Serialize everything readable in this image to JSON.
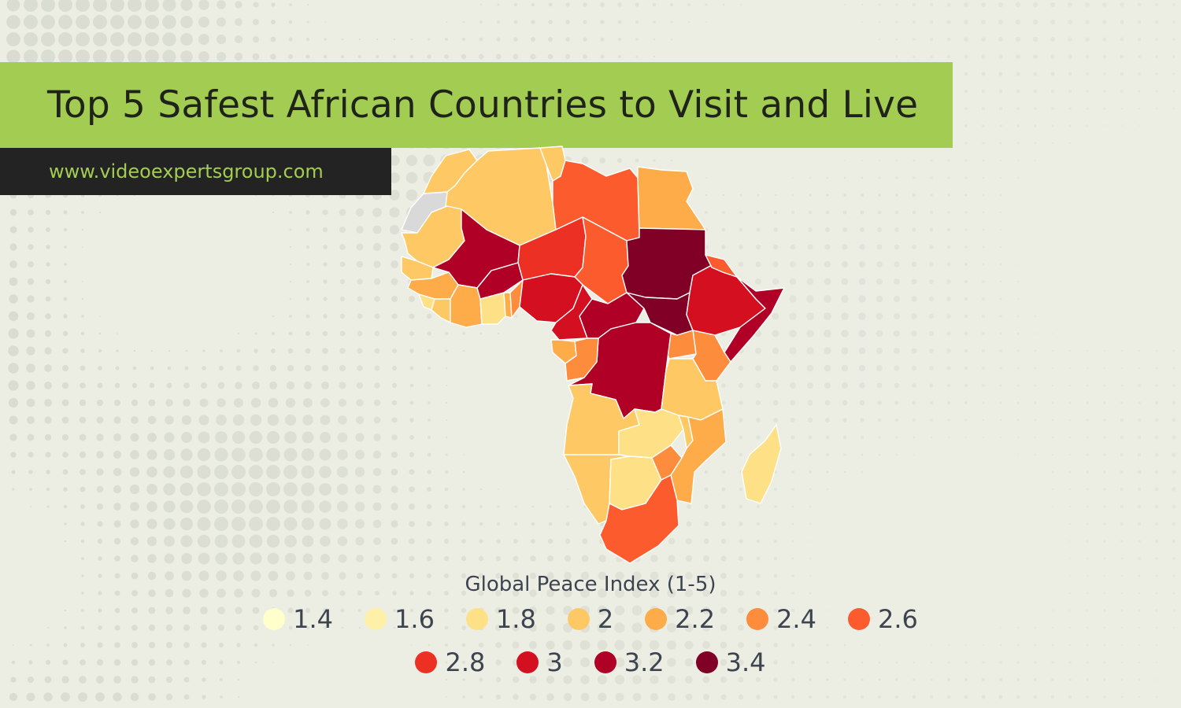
{
  "header": {
    "title": "Top 5 Safest African Countries to Visit and Live",
    "url": "www.videoexpertsgroup.com"
  },
  "colors": {
    "background": "#eceee4",
    "title_bar": "#a2cd52",
    "url_bar": "#232323",
    "url_text": "#a2cd52",
    "no_data": "#d9d9d9"
  },
  "legend": {
    "title": "Global Peace Index (1-5)",
    "items": [
      {
        "label": "1.4",
        "color": "#ffffcc"
      },
      {
        "label": "1.6",
        "color": "#fff0a8"
      },
      {
        "label": "1.8",
        "color": "#fee087"
      },
      {
        "label": "2",
        "color": "#fec965"
      },
      {
        "label": "2.2",
        "color": "#feab49"
      },
      {
        "label": "2.4",
        "color": "#fd8c3c"
      },
      {
        "label": "2.6",
        "color": "#fc5b2e"
      },
      {
        "label": "2.8",
        "color": "#ec3023"
      },
      {
        "label": "3",
        "color": "#d41020"
      },
      {
        "label": "3.2",
        "color": "#b00026"
      },
      {
        "label": "3.4",
        "color": "#800026"
      }
    ]
  },
  "map_data": {
    "metric": "Global Peace Index (1-5)",
    "regions": [
      {
        "name": "Western Sahara",
        "value": null
      },
      {
        "name": "Morocco",
        "value": 2.0
      },
      {
        "name": "Algeria",
        "value": 2.0
      },
      {
        "name": "Tunisia",
        "value": 2.0
      },
      {
        "name": "Libya",
        "value": 2.6
      },
      {
        "name": "Egypt",
        "value": 2.2
      },
      {
        "name": "Mauritania",
        "value": 2.0
      },
      {
        "name": "Mali",
        "value": 3.2
      },
      {
        "name": "Niger",
        "value": 2.8
      },
      {
        "name": "Chad",
        "value": 2.6
      },
      {
        "name": "Sudan",
        "value": 3.4
      },
      {
        "name": "Senegal",
        "value": 2.0
      },
      {
        "name": "Guinea",
        "value": 2.2
      },
      {
        "name": "Sierra Leone",
        "value": 1.8
      },
      {
        "name": "Liberia",
        "value": 2.0
      },
      {
        "name": "Cote d'Ivoire",
        "value": 2.2
      },
      {
        "name": "Burkina Faso",
        "value": 3.2
      },
      {
        "name": "Ghana",
        "value": 1.8
      },
      {
        "name": "Togo",
        "value": 2.2
      },
      {
        "name": "Benin",
        "value": 2.4
      },
      {
        "name": "Nigeria",
        "value": 3.0
      },
      {
        "name": "Cameroon",
        "value": 3.0
      },
      {
        "name": "Central African Republic",
        "value": 3.2
      },
      {
        "name": "South Sudan",
        "value": 3.4
      },
      {
        "name": "Ethiopia",
        "value": 3.0
      },
      {
        "name": "Eritrea",
        "value": 2.6
      },
      {
        "name": "Somalia",
        "value": 3.2
      },
      {
        "name": "Kenya",
        "value": 2.4
      },
      {
        "name": "Uganda",
        "value": 2.4
      },
      {
        "name": "DR Congo",
        "value": 3.2
      },
      {
        "name": "Congo",
        "value": 2.4
      },
      {
        "name": "Gabon",
        "value": 2.2
      },
      {
        "name": "Tanzania",
        "value": 2.0
      },
      {
        "name": "Angola",
        "value": 2.0
      },
      {
        "name": "Zambia",
        "value": 1.8
      },
      {
        "name": "Malawi",
        "value": 2.0
      },
      {
        "name": "Mozambique",
        "value": 2.2
      },
      {
        "name": "Namibia",
        "value": 2.0
      },
      {
        "name": "Botswana",
        "value": 1.8
      },
      {
        "name": "Zimbabwe",
        "value": 2.4
      },
      {
        "name": "South Africa",
        "value": 2.6
      },
      {
        "name": "Madagascar",
        "value": 1.8
      }
    ]
  }
}
